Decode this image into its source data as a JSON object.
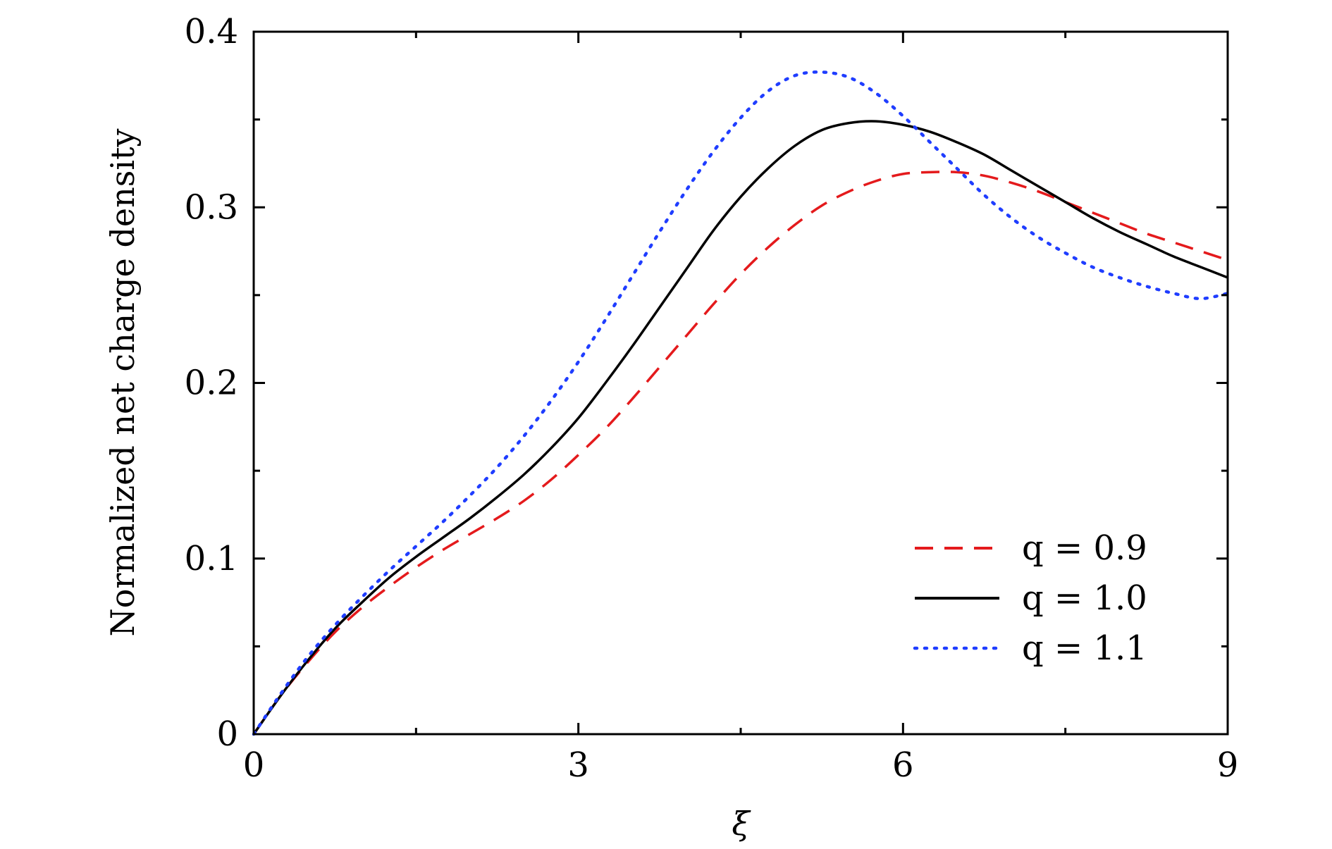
{
  "chart_data": {
    "type": "line",
    "xlabel": "ξ",
    "ylabel": "Normalized net charge density",
    "xlim": [
      0,
      9
    ],
    "ylim": [
      0,
      0.4
    ],
    "xticks": [
      0,
      3,
      6,
      9
    ],
    "xtick_labels": [
      "0",
      "3",
      "6",
      "9"
    ],
    "yticks": [
      0,
      0.1,
      0.2,
      0.3,
      0.4
    ],
    "ytick_labels": [
      "0",
      "0.1",
      "0.2",
      "0.3",
      "0.4"
    ],
    "grid": false,
    "legend_position": "bottom-right",
    "x": [
      0,
      0.25,
      0.5,
      0.75,
      1.0,
      1.25,
      1.5,
      1.75,
      2.0,
      2.25,
      2.5,
      2.75,
      3.0,
      3.25,
      3.5,
      3.75,
      4.0,
      4.25,
      4.5,
      4.75,
      5.0,
      5.25,
      5.5,
      5.75,
      6.0,
      6.25,
      6.5,
      6.75,
      7.0,
      7.25,
      7.5,
      7.75,
      8.0,
      8.25,
      8.5,
      8.75,
      9.0
    ],
    "series": [
      {
        "name": "q = 0.9",
        "style": "dashed",
        "color": "#e41a1c",
        "values": [
          0,
          0.022,
          0.041,
          0.058,
          0.072,
          0.084,
          0.095,
          0.105,
          0.114,
          0.123,
          0.133,
          0.145,
          0.159,
          0.174,
          0.191,
          0.209,
          0.227,
          0.245,
          0.262,
          0.277,
          0.29,
          0.301,
          0.309,
          0.315,
          0.319,
          0.32,
          0.32,
          0.318,
          0.314,
          0.309,
          0.303,
          0.297,
          0.291,
          0.285,
          0.28,
          0.275,
          0.27
        ]
      },
      {
        "name": "q = 1.0",
        "style": "solid",
        "color": "#000000",
        "values": [
          0,
          0.022,
          0.042,
          0.06,
          0.075,
          0.089,
          0.101,
          0.112,
          0.123,
          0.135,
          0.148,
          0.163,
          0.18,
          0.2,
          0.221,
          0.243,
          0.265,
          0.287,
          0.306,
          0.322,
          0.335,
          0.344,
          0.348,
          0.349,
          0.347,
          0.343,
          0.337,
          0.33,
          0.321,
          0.312,
          0.303,
          0.294,
          0.286,
          0.279,
          0.272,
          0.266,
          0.26
        ]
      },
      {
        "name": "q = 1.1",
        "style": "dotted",
        "color": "#1f3dff",
        "values": [
          0,
          0.023,
          0.044,
          0.062,
          0.078,
          0.093,
          0.107,
          0.121,
          0.136,
          0.152,
          0.17,
          0.19,
          0.212,
          0.236,
          0.261,
          0.286,
          0.31,
          0.332,
          0.351,
          0.366,
          0.375,
          0.377,
          0.374,
          0.365,
          0.352,
          0.337,
          0.322,
          0.307,
          0.294,
          0.283,
          0.274,
          0.266,
          0.26,
          0.255,
          0.251,
          0.248,
          0.251
        ]
      }
    ]
  }
}
